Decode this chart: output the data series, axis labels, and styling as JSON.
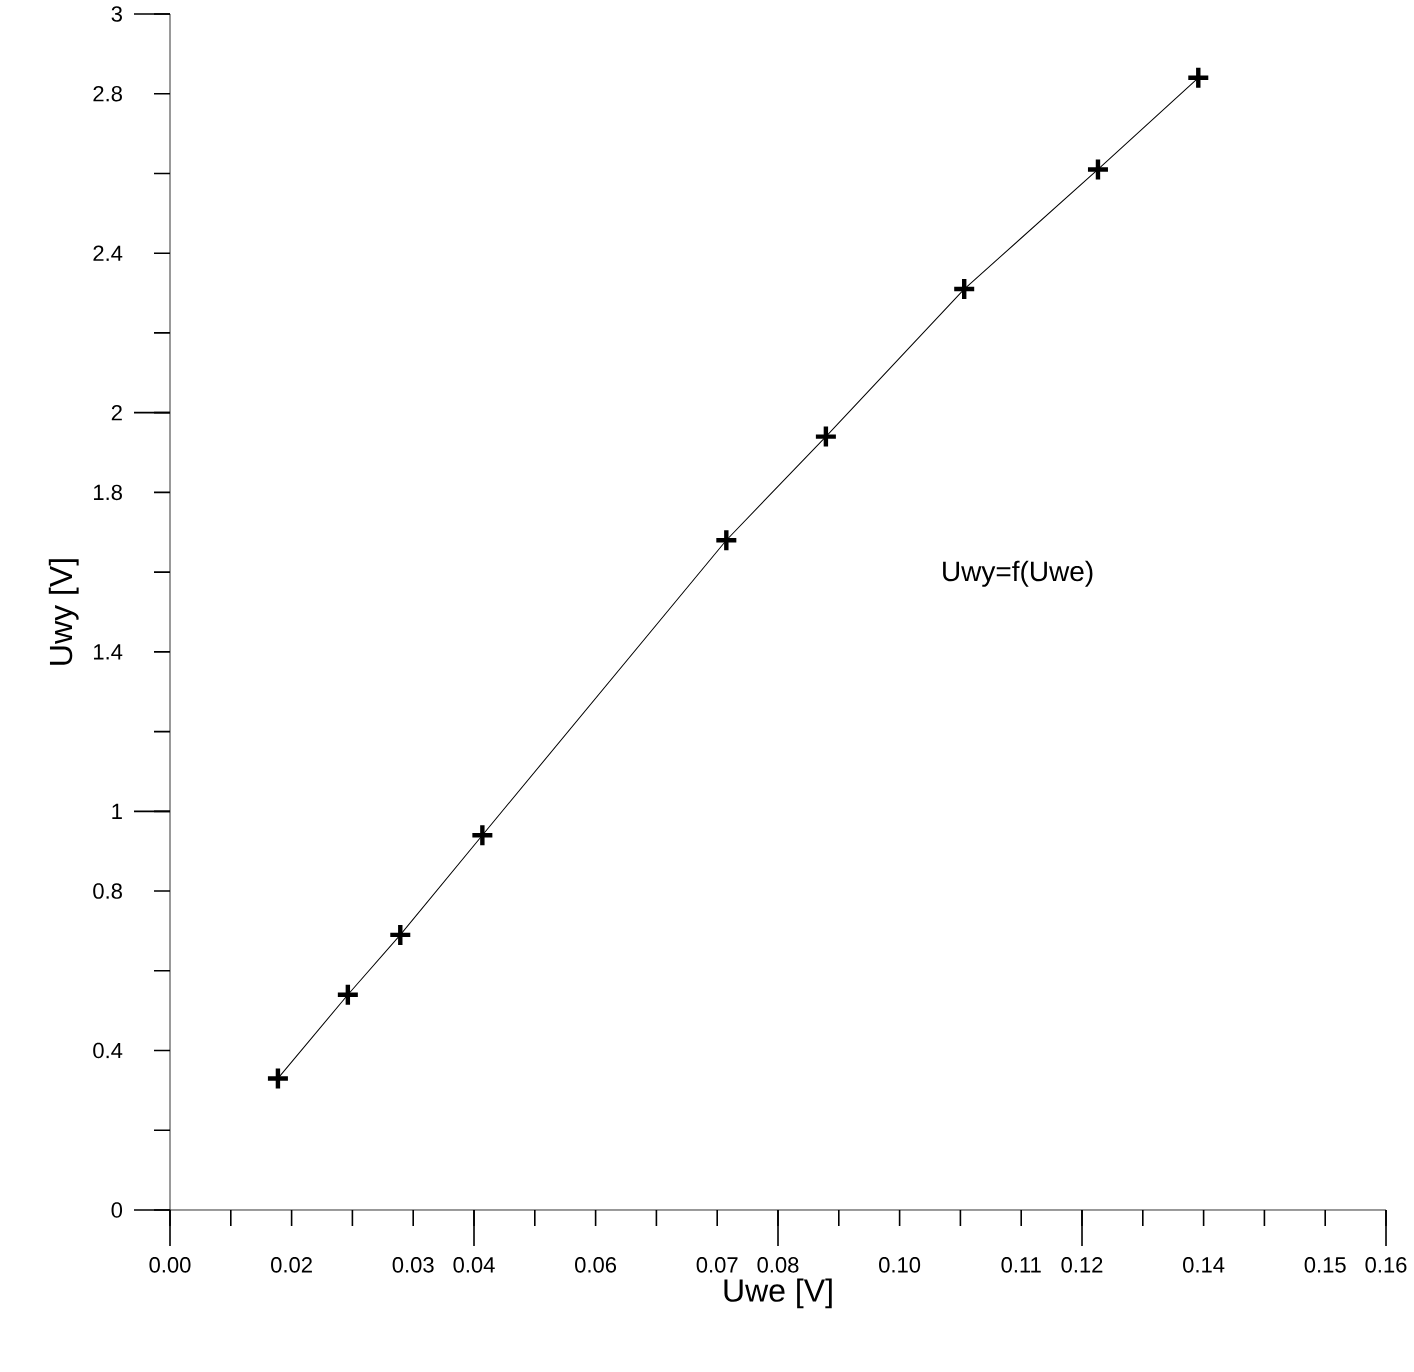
{
  "chart_data": {
    "type": "line",
    "xlabel": "Uwe [V]",
    "ylabel": "Uwy [V]",
    "annotations": [
      "Uwy=f(Uwe)"
    ],
    "x": [
      0.0142,
      0.0234,
      0.0303,
      0.0411,
      0.0732,
      0.0863,
      0.1045,
      0.1221,
      0.1353
    ],
    "series": [
      {
        "color": "#000000",
        "values": [
          0.33,
          0.54,
          0.69,
          0.94,
          1.68,
          1.94,
          2.31,
          2.61,
          2.84
        ]
      }
    ],
    "marker": "cross",
    "line_style": "solid",
    "xlim": [
      0,
      0.16
    ],
    "ylim": [
      0,
      3
    ],
    "xticks": [
      {
        "value": 0,
        "label": "0.00"
      },
      {
        "value": 0.008,
        "label": null
      },
      {
        "value": 0.016,
        "label": "0.02"
      },
      {
        "value": 0.024,
        "label": null
      },
      {
        "value": 0.032,
        "label": "0.03"
      },
      {
        "value": 0.04,
        "label": "0.04"
      },
      {
        "value": 0.048,
        "label": null
      },
      {
        "value": 0.056,
        "label": "0.06"
      },
      {
        "value": 0.064,
        "label": null
      },
      {
        "value": 0.072,
        "label": "0.07"
      },
      {
        "value": 0.08,
        "label": "0.08"
      },
      {
        "value": 0.088,
        "label": null
      },
      {
        "value": 0.096,
        "label": "0.10"
      },
      {
        "value": 0.104,
        "label": null
      },
      {
        "value": 0.112,
        "label": "0.11"
      },
      {
        "value": 0.12,
        "label": "0.12"
      },
      {
        "value": 0.128,
        "label": null
      },
      {
        "value": 0.136,
        "label": "0.14"
      },
      {
        "value": 0.144,
        "label": null
      },
      {
        "value": 0.152,
        "label": "0.15"
      },
      {
        "value": 0.16,
        "label": "0.16"
      }
    ],
    "yticks": [
      0,
      {
        "value": 0.2,
        "label": null
      },
      0.4,
      {
        "value": 0.6,
        "label": null
      },
      0.8,
      1,
      {
        "value": 1.2,
        "label": null
      },
      1.4,
      {
        "value": 1.6,
        "label": null
      },
      1.8,
      2,
      {
        "value": 2.2,
        "label": null
      },
      2.4,
      {
        "value": 2.6,
        "label": null
      },
      2.8,
      3
    ]
  }
}
